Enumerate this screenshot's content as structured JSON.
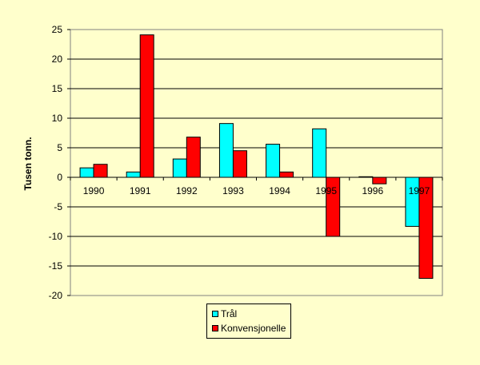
{
  "chart_data": {
    "type": "bar",
    "ylabel": "Tusen tonn.",
    "ylim": [
      -20,
      25
    ],
    "yticks": [
      25,
      20,
      15,
      10,
      5,
      0,
      -5,
      -10,
      -15,
      -20
    ],
    "categories": [
      "1990",
      "1991",
      "1992",
      "1993",
      "1994",
      "1995",
      "1996",
      "1997"
    ],
    "series": [
      {
        "name": "Trål",
        "color": "#00ffff",
        "values": [
          1.6,
          0.9,
          3.1,
          9.1,
          5.6,
          8.2,
          0.1,
          -8.3
        ]
      },
      {
        "name": "Konvensjonelle",
        "color": "#ff0000",
        "values": [
          2.2,
          24.1,
          6.8,
          4.5,
          0.9,
          -10.0,
          -1.1,
          -17.1
        ]
      }
    ],
    "grid": true,
    "legend": "bottom"
  }
}
